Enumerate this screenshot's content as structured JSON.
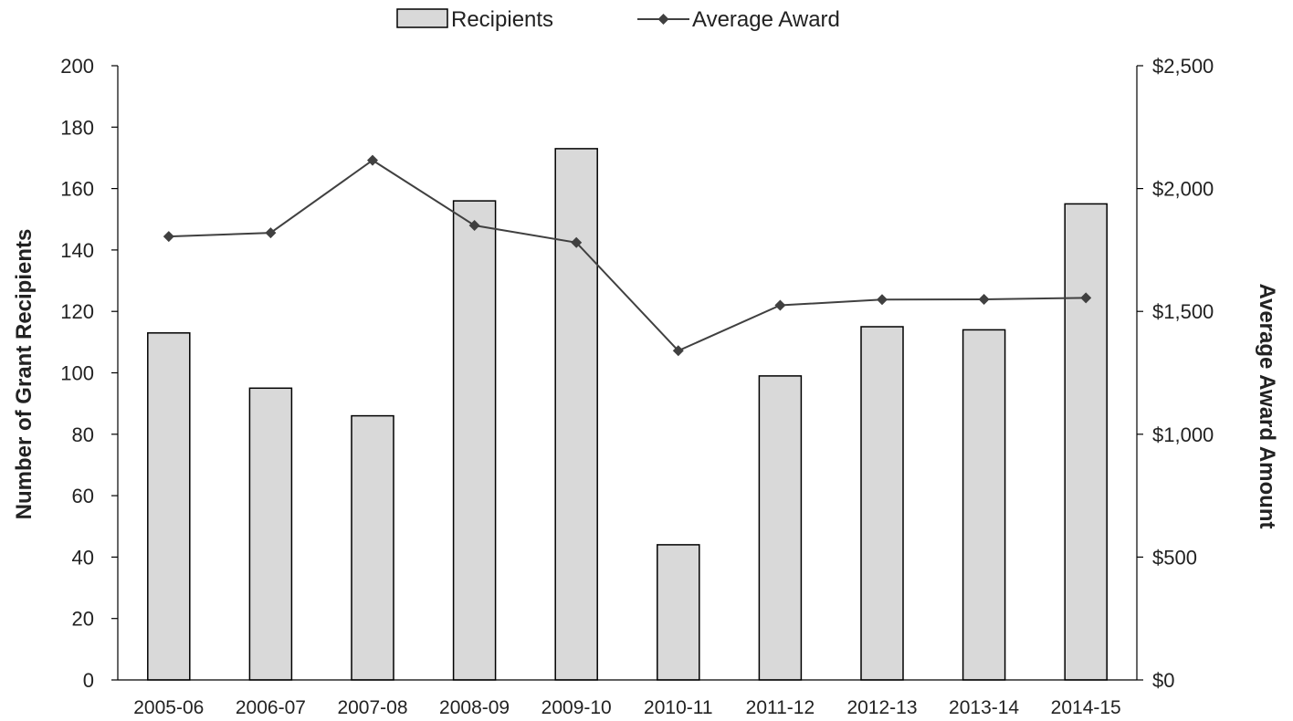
{
  "chart_data": {
    "type": "bar",
    "categories": [
      "2005-06",
      "2006-07",
      "2007-08",
      "2008-09",
      "2009-10",
      "2010-11",
      "2011-12",
      "2012-13",
      "2013-14",
      "2014-15"
    ],
    "series": [
      {
        "name": "Recipients",
        "type": "bar",
        "axis": "left",
        "values": [
          113,
          95,
          86,
          156,
          173,
          44,
          99,
          115,
          114,
          155
        ]
      },
      {
        "name": "Average Award",
        "type": "line",
        "axis": "right",
        "values": [
          1805,
          1820,
          2115,
          1850,
          1780,
          1340,
          1525,
          1548,
          1549,
          1555
        ]
      }
    ],
    "ylabel": "Number of Grant Recipients",
    "y2label": "Average Award Amount",
    "ylim": [
      0,
      200
    ],
    "y2lim": [
      0,
      2500
    ],
    "yticks": [
      "0",
      "20",
      "40",
      "60",
      "80",
      "100",
      "120",
      "140",
      "160",
      "180",
      "200"
    ],
    "y2ticks": [
      "$0",
      "$500",
      "$1,000",
      "$1,500",
      "$2,000",
      "$2,500"
    ],
    "legend_position": "top-center",
    "grid": false,
    "colors": {
      "bar_fill": "#d9d9d9",
      "bar_stroke": "#000000",
      "line": "#404040",
      "axis": "#000000"
    }
  }
}
